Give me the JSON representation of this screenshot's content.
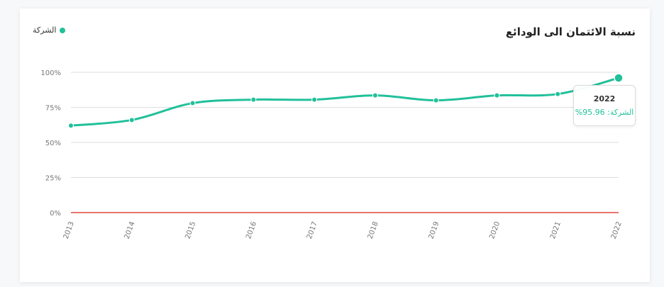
{
  "title": "نسبة الائتمان الى الودائع",
  "legend": {
    "label": "الشركة"
  },
  "colors": {
    "series": "#21c09a",
    "zero_line": "#e0473e",
    "grid": "#dddddd",
    "axis_text": "#777777"
  },
  "chart_data": {
    "type": "line",
    "title": "نسبة الائتمان الى الودائع",
    "x": [
      "2013",
      "2014",
      "2015",
      "2016",
      "2017",
      "2018",
      "2019",
      "2020",
      "2021",
      "2022"
    ],
    "series": [
      {
        "name": "الشركة",
        "values": [
          62,
          66,
          78,
          80.5,
          80.5,
          83.5,
          80,
          83.5,
          84.5,
          95.96
        ]
      }
    ],
    "yticks": [
      "0%",
      "25%",
      "50%",
      "75%",
      "100%"
    ],
    "ylim": [
      0,
      100
    ],
    "grid": true,
    "legend_position": "top-left"
  },
  "tooltip": {
    "title": "2022",
    "series": "الشركة",
    "value": "95.96%"
  }
}
